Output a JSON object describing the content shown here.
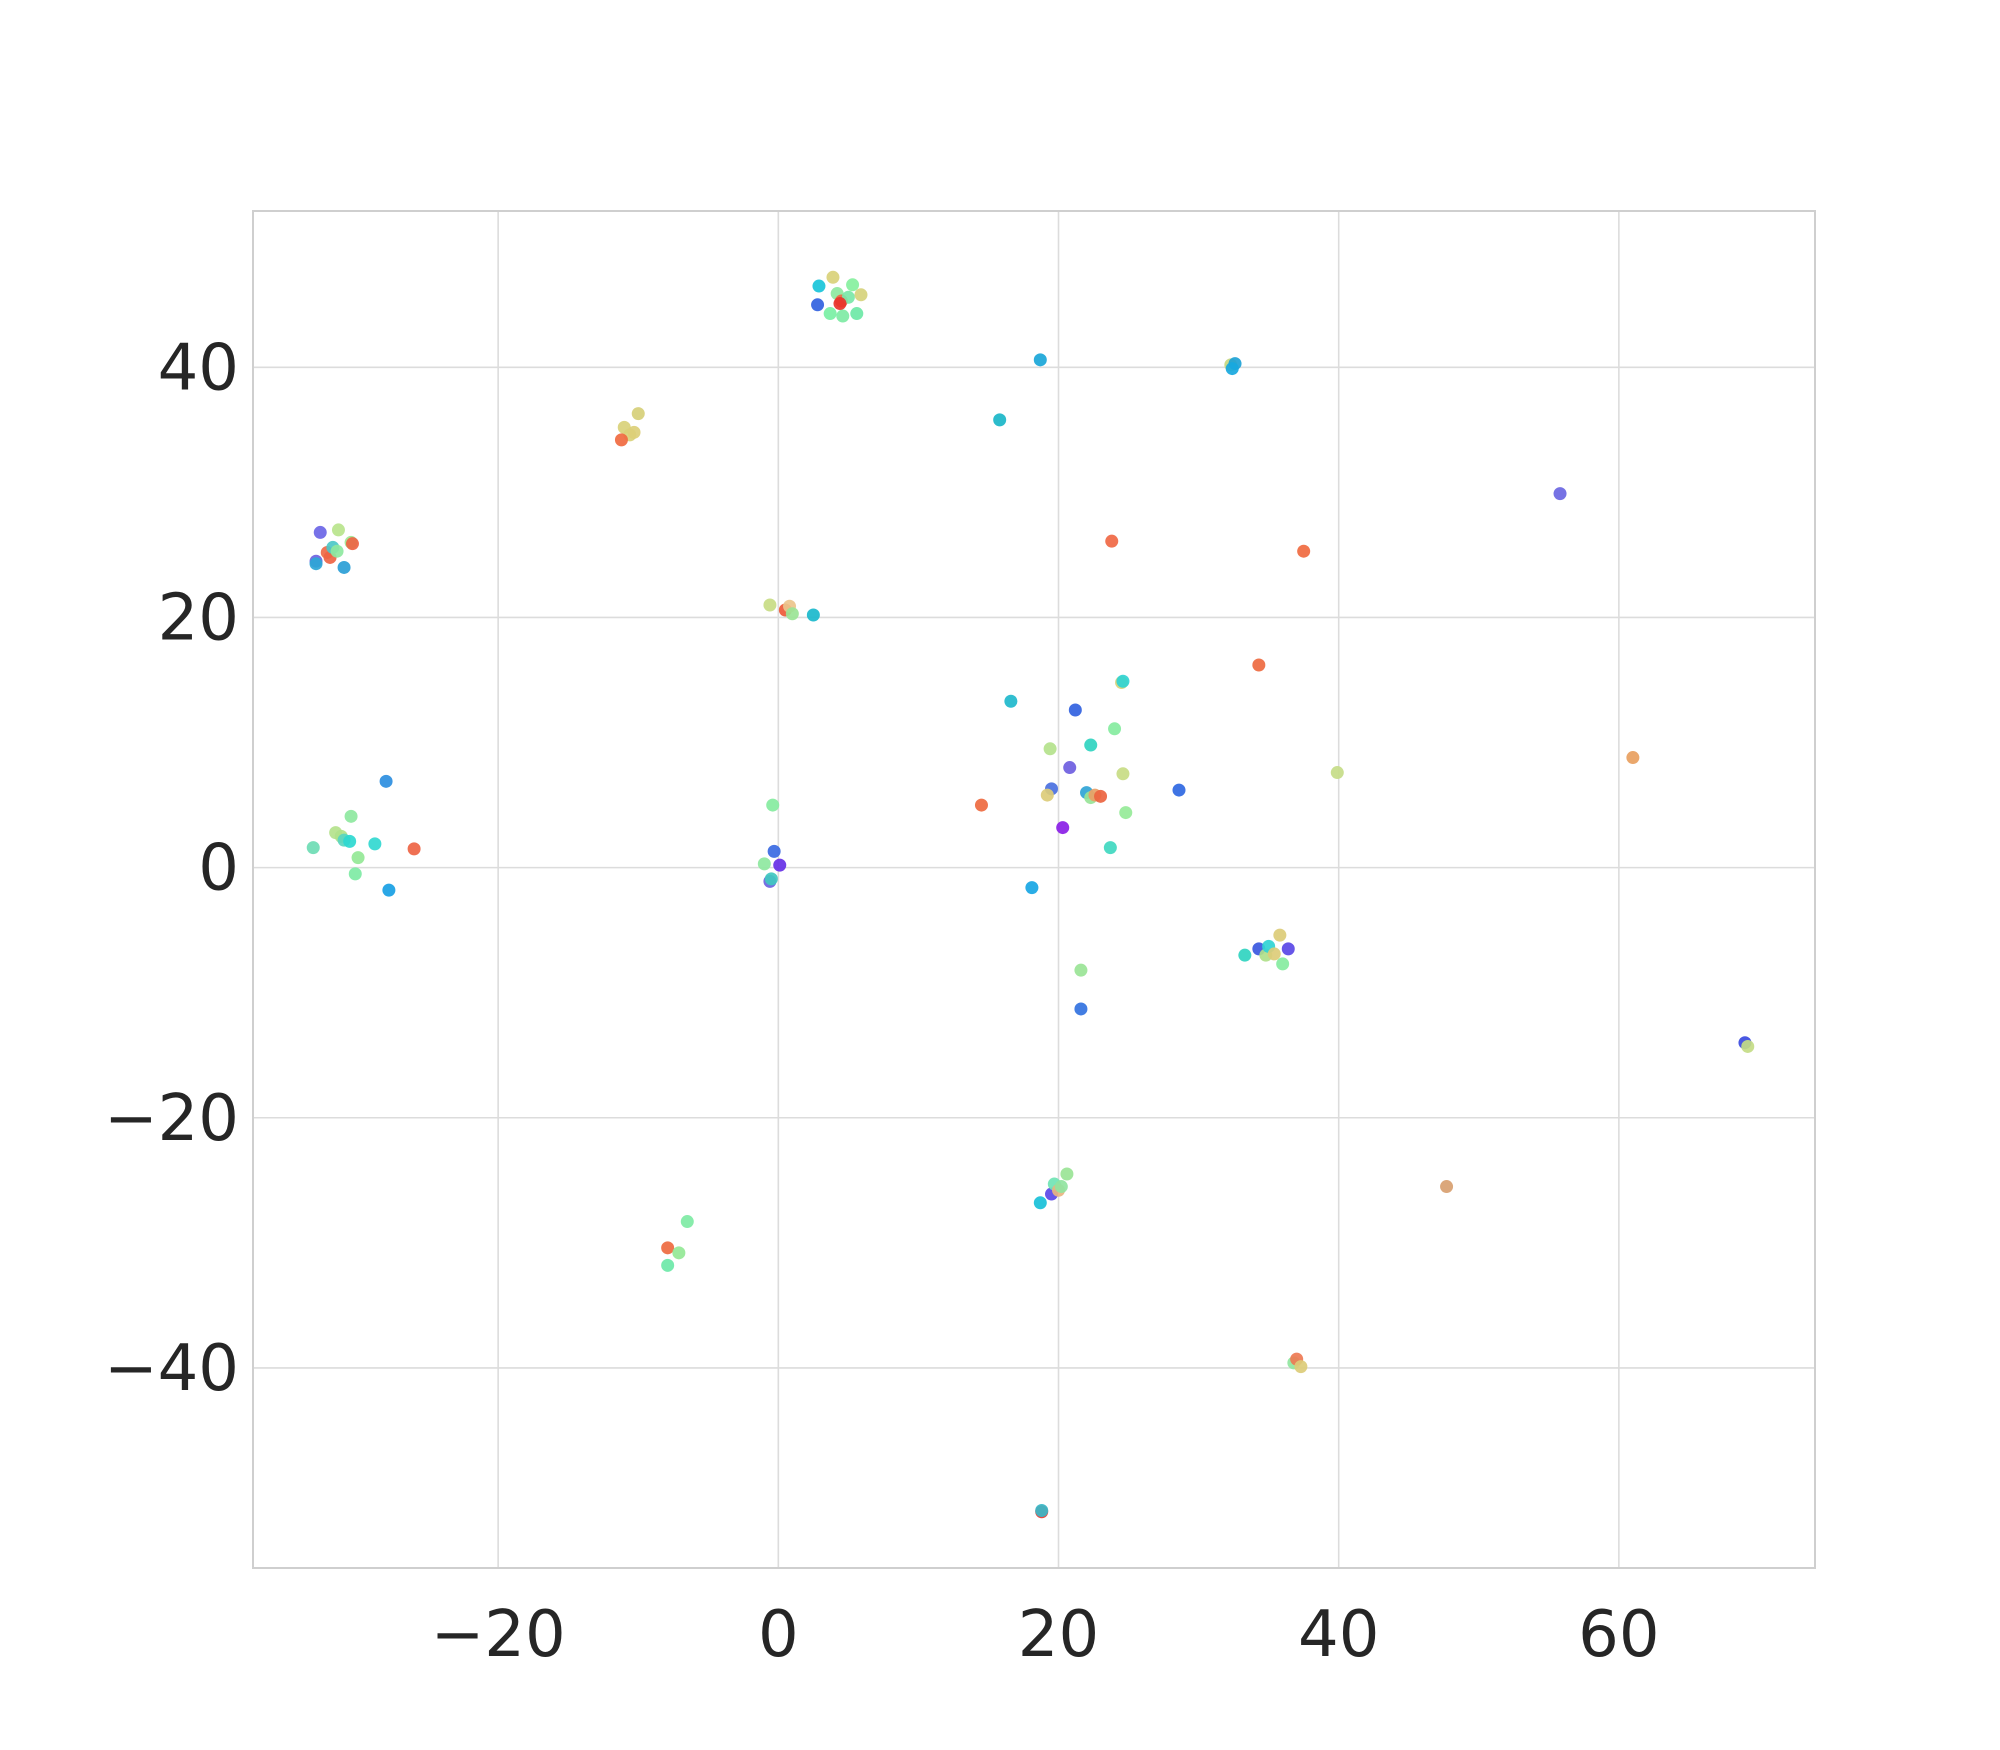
{
  "chart_data": {
    "type": "scatter",
    "title": "",
    "xlabel": "",
    "ylabel": "",
    "xlim": [
      -37.5,
      74
    ],
    "ylim": [
      -56,
      52.5
    ],
    "x_ticks": [
      -20,
      0,
      20,
      40,
      60
    ],
    "y_ticks": [
      -40,
      -20,
      0,
      20,
      40
    ],
    "x_tick_labels": [
      "−20",
      "0",
      "20",
      "40",
      "60"
    ],
    "y_tick_labels": [
      "−40",
      "−20",
      "0",
      "20",
      "40"
    ],
    "grid": true,
    "legend": "none",
    "points": [
      {
        "x": 3.9,
        "y": 47.2,
        "c": "#d9d17a"
      },
      {
        "x": 2.9,
        "y": 46.5,
        "c": "#19c4d9"
      },
      {
        "x": 2.8,
        "y": 45.0,
        "c": "#3262e0"
      },
      {
        "x": 4.2,
        "y": 45.9,
        "c": "#8ee8a0"
      },
      {
        "x": 4.5,
        "y": 45.3,
        "c": "#ee6844"
      },
      {
        "x": 5.0,
        "y": 45.6,
        "c": "#79e7a8"
      },
      {
        "x": 5.3,
        "y": 46.6,
        "c": "#86f09e"
      },
      {
        "x": 5.6,
        "y": 44.3,
        "c": "#6ce8a6"
      },
      {
        "x": 5.9,
        "y": 45.8,
        "c": "#d6d27c"
      },
      {
        "x": 3.7,
        "y": 44.3,
        "c": "#7af0a4"
      },
      {
        "x": 4.6,
        "y": 44.1,
        "c": "#7eeaa4"
      },
      {
        "x": 4.4,
        "y": 45.1,
        "c": "#e8332a"
      },
      {
        "x": 18.7,
        "y": 40.6,
        "c": "#1aa6d8"
      },
      {
        "x": 15.8,
        "y": 35.8,
        "c": "#1ab6c8"
      },
      {
        "x": 32.3,
        "y": 40.2,
        "c": "#c8d880"
      },
      {
        "x": 32.6,
        "y": 40.3,
        "c": "#1da2d6"
      },
      {
        "x": 32.4,
        "y": 39.9,
        "c": "#18a8de"
      },
      {
        "x": -11.0,
        "y": 35.2,
        "c": "#d9d17a"
      },
      {
        "x": -10.0,
        "y": 36.3,
        "c": "#d6cf78"
      },
      {
        "x": -10.6,
        "y": 34.6,
        "c": "#d9d17a"
      },
      {
        "x": -11.2,
        "y": 34.2,
        "c": "#f06a40"
      },
      {
        "x": -10.3,
        "y": 34.8,
        "c": "#dccf78"
      },
      {
        "x": -33.0,
        "y": 24.5,
        "c": "#6e62e0"
      },
      {
        "x": -33.0,
        "y": 24.3,
        "c": "#2ea6d6"
      },
      {
        "x": -32.7,
        "y": 26.8,
        "c": "#6b66e6"
      },
      {
        "x": -32.2,
        "y": 25.2,
        "c": "#ee6a48"
      },
      {
        "x": -32.0,
        "y": 24.8,
        "c": "#ee6444"
      },
      {
        "x": -31.8,
        "y": 25.6,
        "c": "#4cc8c8"
      },
      {
        "x": -31.5,
        "y": 25.3,
        "c": "#8ee8a0"
      },
      {
        "x": -31.4,
        "y": 27.0,
        "c": "#b8e48c"
      },
      {
        "x": -31.0,
        "y": 24.0,
        "c": "#2a9ed6"
      },
      {
        "x": -30.5,
        "y": 26.0,
        "c": "#a0e690"
      },
      {
        "x": -30.4,
        "y": 25.9,
        "c": "#ee6444"
      },
      {
        "x": 23.8,
        "y": 26.1,
        "c": "#f06844"
      },
      {
        "x": 37.5,
        "y": 25.3,
        "c": "#f06a40"
      },
      {
        "x": 55.8,
        "y": 29.9,
        "c": "#6a66e2"
      },
      {
        "x": -0.6,
        "y": 21.0,
        "c": "#c8dc84"
      },
      {
        "x": 0.5,
        "y": 20.6,
        "c": "#ee5a3a"
      },
      {
        "x": 0.8,
        "y": 20.9,
        "c": "#ecc48c"
      },
      {
        "x": 1.0,
        "y": 20.3,
        "c": "#9ae496"
      },
      {
        "x": 2.5,
        "y": 20.2,
        "c": "#1ab8cc"
      },
      {
        "x": 34.3,
        "y": 16.2,
        "c": "#ee6a40"
      },
      {
        "x": 16.6,
        "y": 13.3,
        "c": "#20b8cc"
      },
      {
        "x": 24.5,
        "y": 14.8,
        "c": "#d8d27a"
      },
      {
        "x": 24.6,
        "y": 14.9,
        "c": "#30d4d4"
      },
      {
        "x": 21.2,
        "y": 12.6,
        "c": "#3262e0"
      },
      {
        "x": 22.3,
        "y": 9.8,
        "c": "#30d4c0"
      },
      {
        "x": 19.4,
        "y": 9.5,
        "c": "#b4e28c"
      },
      {
        "x": 24.0,
        "y": 11.1,
        "c": "#86eca0"
      },
      {
        "x": 20.8,
        "y": 8.0,
        "c": "#6e5ee0"
      },
      {
        "x": 24.6,
        "y": 7.5,
        "c": "#c8dc84"
      },
      {
        "x": 19.5,
        "y": 6.3,
        "c": "#4a70e0"
      },
      {
        "x": 19.2,
        "y": 5.8,
        "c": "#dccc78"
      },
      {
        "x": 22.0,
        "y": 6.0,
        "c": "#30a4d6"
      },
      {
        "x": 22.3,
        "y": 5.6,
        "c": "#98e498"
      },
      {
        "x": 22.6,
        "y": 5.8,
        "c": "#e8a066"
      },
      {
        "x": 23.0,
        "y": 5.7,
        "c": "#ec6440"
      },
      {
        "x": 24.8,
        "y": 4.4,
        "c": "#96ea98"
      },
      {
        "x": 14.5,
        "y": 5.0,
        "c": "#ee6a40"
      },
      {
        "x": 20.3,
        "y": 3.2,
        "c": "#8a1ee6"
      },
      {
        "x": 23.7,
        "y": 1.6,
        "c": "#40d8c0"
      },
      {
        "x": 28.6,
        "y": 6.2,
        "c": "#2f68e2"
      },
      {
        "x": 39.9,
        "y": 7.6,
        "c": "#c6dc88"
      },
      {
        "x": 61.0,
        "y": 8.8,
        "c": "#e8a060"
      },
      {
        "x": -28.0,
        "y": 6.9,
        "c": "#2c8ee0"
      },
      {
        "x": -31.6,
        "y": 2.8,
        "c": "#b4e28c"
      },
      {
        "x": -31.2,
        "y": 2.5,
        "c": "#b0e28a"
      },
      {
        "x": -31.0,
        "y": 2.2,
        "c": "#5ad6c0"
      },
      {
        "x": -30.5,
        "y": 4.1,
        "c": "#8ee8a0"
      },
      {
        "x": -30.6,
        "y": 2.1,
        "c": "#2ed8d0"
      },
      {
        "x": -33.2,
        "y": 1.6,
        "c": "#6edcb4"
      },
      {
        "x": -30.0,
        "y": 0.8,
        "c": "#94e896"
      },
      {
        "x": -30.2,
        "y": -0.5,
        "c": "#7eeaa4"
      },
      {
        "x": -28.8,
        "y": 1.9,
        "c": "#32d8d0"
      },
      {
        "x": -27.8,
        "y": -1.8,
        "c": "#18a0e4"
      },
      {
        "x": -26.0,
        "y": 1.5,
        "c": "#ee6444"
      },
      {
        "x": -0.4,
        "y": 5.0,
        "c": "#86eca0"
      },
      {
        "x": -1.0,
        "y": 0.3,
        "c": "#8ee8a0"
      },
      {
        "x": -0.3,
        "y": 1.3,
        "c": "#3a6ae2"
      },
      {
        "x": -0.6,
        "y": -1.1,
        "c": "#6a64e0"
      },
      {
        "x": -0.5,
        "y": -0.9,
        "c": "#40c8c0"
      },
      {
        "x": 0.1,
        "y": 0.2,
        "c": "#6630e6"
      },
      {
        "x": 18.1,
        "y": -1.6,
        "c": "#18a6e4"
      },
      {
        "x": 33.3,
        "y": -7.0,
        "c": "#30d4c0"
      },
      {
        "x": 34.3,
        "y": -6.5,
        "c": "#3a58e0"
      },
      {
        "x": 34.8,
        "y": -7.0,
        "c": "#b0e08a"
      },
      {
        "x": 35.0,
        "y": -6.3,
        "c": "#30d4d4"
      },
      {
        "x": 35.4,
        "y": -6.9,
        "c": "#dccc78"
      },
      {
        "x": 35.8,
        "y": -5.4,
        "c": "#dccc78"
      },
      {
        "x": 36.0,
        "y": -7.7,
        "c": "#86eca0"
      },
      {
        "x": 36.4,
        "y": -6.5,
        "c": "#5a48e6"
      },
      {
        "x": 21.6,
        "y": -8.2,
        "c": "#9ae496"
      },
      {
        "x": 21.6,
        "y": -11.3,
        "c": "#3272e0"
      },
      {
        "x": 69.0,
        "y": -14.0,
        "c": "#3a4ae0"
      },
      {
        "x": 69.2,
        "y": -14.3,
        "c": "#c4dc86"
      },
      {
        "x": 47.7,
        "y": -25.5,
        "c": "#d8a070"
      },
      {
        "x": 19.5,
        "y": -26.1,
        "c": "#5a48e8"
      },
      {
        "x": 19.7,
        "y": -25.3,
        "c": "#70e4b4"
      },
      {
        "x": 20.0,
        "y": -25.8,
        "c": "#e8b480"
      },
      {
        "x": 20.2,
        "y": -25.5,
        "c": "#90e4a0"
      },
      {
        "x": 20.6,
        "y": -24.5,
        "c": "#9ae496"
      },
      {
        "x": 18.7,
        "y": -26.8,
        "c": "#18c0d8"
      },
      {
        "x": -6.5,
        "y": -28.3,
        "c": "#7eeaa4"
      },
      {
        "x": -7.9,
        "y": -30.4,
        "c": "#ee6a40"
      },
      {
        "x": -7.1,
        "y": -30.8,
        "c": "#94e896"
      },
      {
        "x": -7.9,
        "y": -31.8,
        "c": "#6ce8a8"
      },
      {
        "x": 36.8,
        "y": -39.6,
        "c": "#90e6a0"
      },
      {
        "x": 37.0,
        "y": -39.3,
        "c": "#ee7a54"
      },
      {
        "x": 37.3,
        "y": -39.9,
        "c": "#dccc78"
      },
      {
        "x": 18.8,
        "y": -51.5,
        "c": "#e83a30"
      },
      {
        "x": 18.8,
        "y": -51.4,
        "c": "#38b8c8"
      }
    ]
  }
}
